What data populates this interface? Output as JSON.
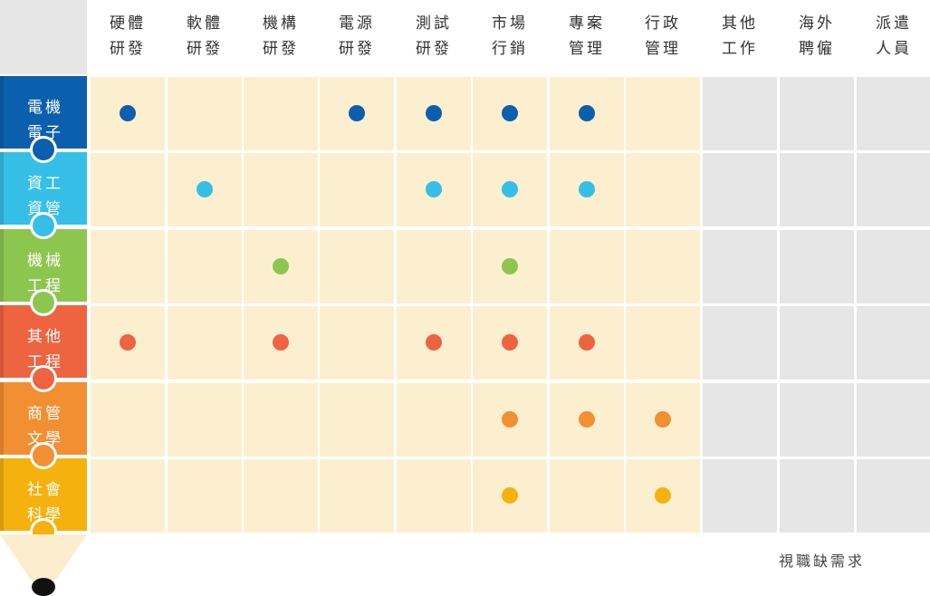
{
  "columns": [
    {
      "line1": "硬體",
      "line2": "研發"
    },
    {
      "line1": "軟體",
      "line2": "研發"
    },
    {
      "line1": "機構",
      "line2": "研發"
    },
    {
      "line1": "電源",
      "line2": "研發"
    },
    {
      "line1": "測試",
      "line2": "研發"
    },
    {
      "line1": "市場",
      "line2": "行銷"
    },
    {
      "line1": "專案",
      "line2": "管理"
    },
    {
      "line1": "行政",
      "line2": "管理"
    },
    {
      "line1": "其他",
      "line2": "工作"
    },
    {
      "line1": "海外",
      "line2": "聘僱"
    },
    {
      "line1": "派遣",
      "line2": "人員"
    }
  ],
  "rows": [
    {
      "line1": "電機",
      "line2": "電子",
      "color": "#0c5fad",
      "dots": [
        0,
        3,
        4,
        5,
        6
      ]
    },
    {
      "line1": "資工",
      "line2": "資管",
      "color": "#35bfe6",
      "dots": [
        1,
        4,
        5,
        6
      ]
    },
    {
      "line1": "機械",
      "line2": "工程",
      "color": "#8dc64f",
      "dots": [
        2,
        5
      ]
    },
    {
      "line1": "其他",
      "line2": "工程",
      "color": "#ee6340",
      "dots": [
        0,
        2,
        4,
        5,
        6
      ]
    },
    {
      "line1": "商管",
      "line2": "文學",
      "color": "#f28f32",
      "dots": [
        5,
        6,
        7
      ]
    },
    {
      "line1": "社會",
      "line2": "科學",
      "color": "#f5b20f",
      "dots": [
        5,
        7
      ]
    }
  ],
  "colors": {
    "cell_active": "#fcefd0",
    "cell_inactive": "#e6e6e6",
    "pencil_top": "#e6e6e6",
    "pencil_tip": "#fbedcd",
    "pencil_lead": "#111111"
  },
  "note": "視職缺需求"
}
